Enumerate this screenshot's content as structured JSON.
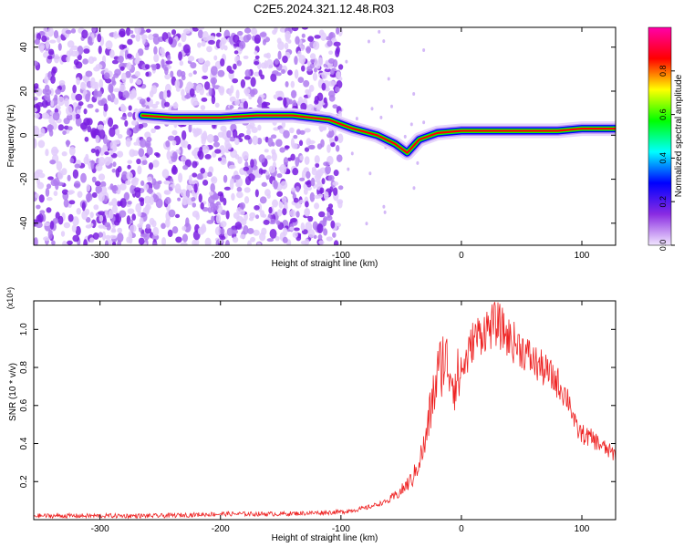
{
  "title": "C2E5.2024.321.12.48.R03",
  "chart_data": [
    {
      "type": "heatmap",
      "title": "C2E5.2024.321.12.48.R03",
      "xlabel": "Height of straight line (km)",
      "ylabel": "Frequency (Hz)",
      "xlim": [
        -355,
        128
      ],
      "ylim": [
        -50,
        49
      ],
      "x_ticks": [
        -300,
        -200,
        -100,
        0,
        100
      ],
      "y_ticks": [
        -40,
        -20,
        0,
        20,
        40
      ],
      "colorbar": {
        "label": "Normalized spectral amplitude",
        "range": [
          0,
          1
        ],
        "ticks": [
          0.0,
          0.2,
          0.4,
          0.6,
          0.8
        ],
        "colors": [
          "#f2e6ff",
          "#8a2be2",
          "#0000ff",
          "#00ffff",
          "#00ff00",
          "#ffff00",
          "#ff0000",
          "#ff00aa"
        ]
      },
      "ridge": [
        {
          "x": -265,
          "y": 9
        },
        {
          "x": -240,
          "y": 8
        },
        {
          "x": -200,
          "y": 8
        },
        {
          "x": -170,
          "y": 9
        },
        {
          "x": -140,
          "y": 9
        },
        {
          "x": -110,
          "y": 7
        },
        {
          "x": -90,
          "y": 3
        },
        {
          "x": -70,
          "y": 0
        },
        {
          "x": -55,
          "y": -4
        },
        {
          "x": -45,
          "y": -8
        },
        {
          "x": -35,
          "y": -2
        },
        {
          "x": -20,
          "y": 1
        },
        {
          "x": 0,
          "y": 2
        },
        {
          "x": 40,
          "y": 2
        },
        {
          "x": 80,
          "y": 2
        },
        {
          "x": 100,
          "y": 3
        },
        {
          "x": 128,
          "y": 3
        }
      ],
      "colors": {
        "ridge_core": "#ff0000",
        "ridge_mid": "#00ff00",
        "ridge_edge": "#0000ff",
        "noise": "#8a2be2"
      }
    },
    {
      "type": "line",
      "xlabel": "Height of straight line (km)",
      "ylabel": "SNR (10 * v/v)",
      "y_multiplier": "(x10⁴)",
      "xlim": [
        -355,
        128
      ],
      "ylim": [
        0,
        1.15
      ],
      "x_ticks": [
        -300,
        -200,
        -100,
        0,
        100
      ],
      "y_ticks": [
        0.2,
        0.4,
        0.6,
        0.8,
        1.0
      ],
      "series": [
        {
          "color": "#ee2222",
          "x": [
            -355,
            -300,
            -250,
            -200,
            -150,
            -100,
            -80,
            -60,
            -50,
            -40,
            -30,
            -25,
            -20,
            -15,
            -10,
            -5,
            0,
            5,
            10,
            20,
            30,
            40,
            50,
            60,
            70,
            80,
            90,
            95,
            100,
            110,
            120,
            128
          ],
          "y": [
            0.02,
            0.02,
            0.02,
            0.03,
            0.03,
            0.04,
            0.06,
            0.1,
            0.15,
            0.22,
            0.4,
            0.6,
            0.75,
            0.85,
            0.8,
            0.72,
            0.78,
            0.85,
            0.95,
            1.0,
            1.03,
            0.95,
            0.9,
            0.83,
            0.78,
            0.72,
            0.62,
            0.48,
            0.45,
            0.42,
            0.37,
            0.34
          ]
        }
      ]
    }
  ]
}
